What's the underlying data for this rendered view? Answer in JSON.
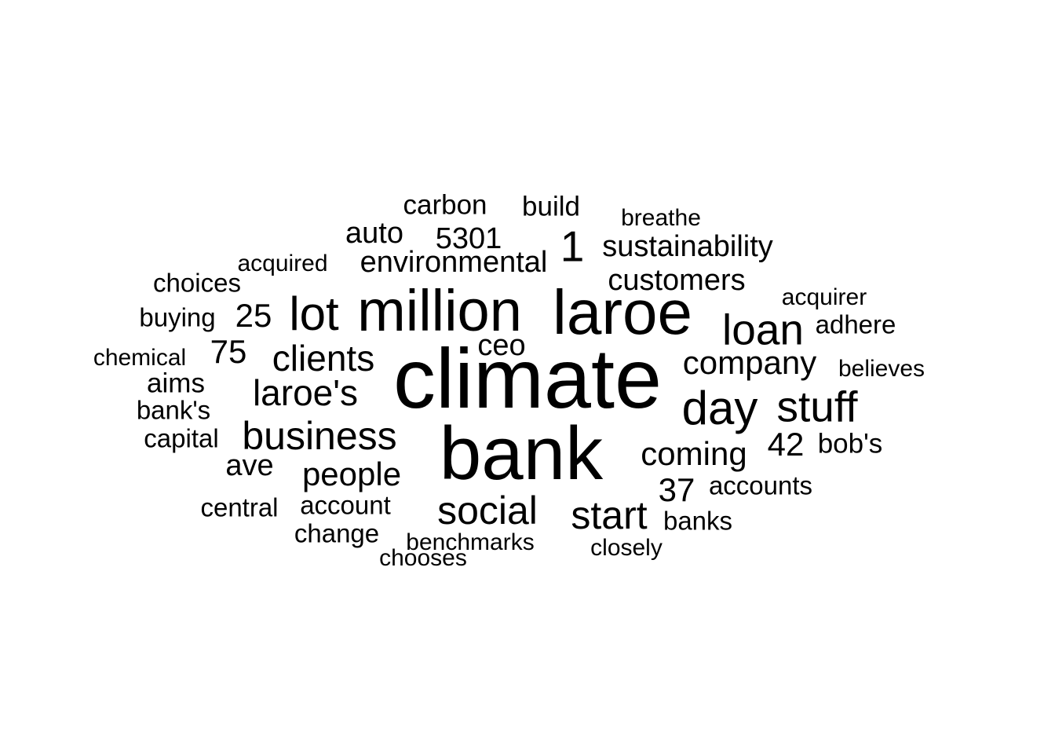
{
  "word_cloud": {
    "words": [
      {
        "id": "climate",
        "text": "climate"
      },
      {
        "id": "bank",
        "text": "bank"
      },
      {
        "id": "laroe",
        "text": "laroe"
      },
      {
        "id": "million",
        "text": "million"
      },
      {
        "id": "lot",
        "text": "lot"
      },
      {
        "id": "day",
        "text": "day"
      },
      {
        "id": "stuff",
        "text": "stuff"
      },
      {
        "id": "loan",
        "text": "loan"
      },
      {
        "id": "business",
        "text": "business"
      },
      {
        "id": "laroes",
        "text": "laroe's"
      },
      {
        "id": "clients",
        "text": "clients"
      },
      {
        "id": "start",
        "text": "start"
      },
      {
        "id": "social",
        "text": "social"
      },
      {
        "id": "company",
        "text": "company"
      },
      {
        "id": "coming",
        "text": "coming"
      },
      {
        "id": "people",
        "text": "people"
      },
      {
        "id": "customers",
        "text": "customers"
      },
      {
        "id": "environmental",
        "text": "environmental"
      },
      {
        "id": "sustainability",
        "text": "sustainability"
      },
      {
        "id": "one",
        "text": "1"
      },
      {
        "id": "fortytwo",
        "text": "42"
      },
      {
        "id": "thirtyseven",
        "text": "37"
      },
      {
        "id": "seventyfive",
        "text": "75"
      },
      {
        "id": "twentyfive",
        "text": "25"
      },
      {
        "id": "ceo",
        "text": "ceo"
      },
      {
        "id": "ave",
        "text": "ave"
      },
      {
        "id": "auto",
        "text": "auto"
      },
      {
        "id": "fivethree",
        "text": "5301"
      },
      {
        "id": "carbon",
        "text": "carbon"
      },
      {
        "id": "build",
        "text": "build"
      },
      {
        "id": "breathe",
        "text": "breathe"
      },
      {
        "id": "acquired",
        "text": "acquired"
      },
      {
        "id": "choices",
        "text": "choices"
      },
      {
        "id": "acquirer",
        "text": "acquirer"
      },
      {
        "id": "buying",
        "text": "buying"
      },
      {
        "id": "adhere",
        "text": "adhere"
      },
      {
        "id": "chemical",
        "text": "chemical"
      },
      {
        "id": "believes",
        "text": "believes"
      },
      {
        "id": "aims",
        "text": "aims"
      },
      {
        "id": "banks_poss",
        "text": "bank's"
      },
      {
        "id": "capital",
        "text": "capital"
      },
      {
        "id": "bobs",
        "text": "bob's"
      },
      {
        "id": "accounts",
        "text": "accounts"
      },
      {
        "id": "central",
        "text": "central"
      },
      {
        "id": "account",
        "text": "account"
      },
      {
        "id": "banks",
        "text": "banks"
      },
      {
        "id": "change",
        "text": "change"
      },
      {
        "id": "benchmarks",
        "text": "benchmarks"
      },
      {
        "id": "closely",
        "text": "closely"
      },
      {
        "id": "chooses",
        "text": "chooses"
      }
    ],
    "text_color": "#000000",
    "background_color": "#ffffff"
  }
}
